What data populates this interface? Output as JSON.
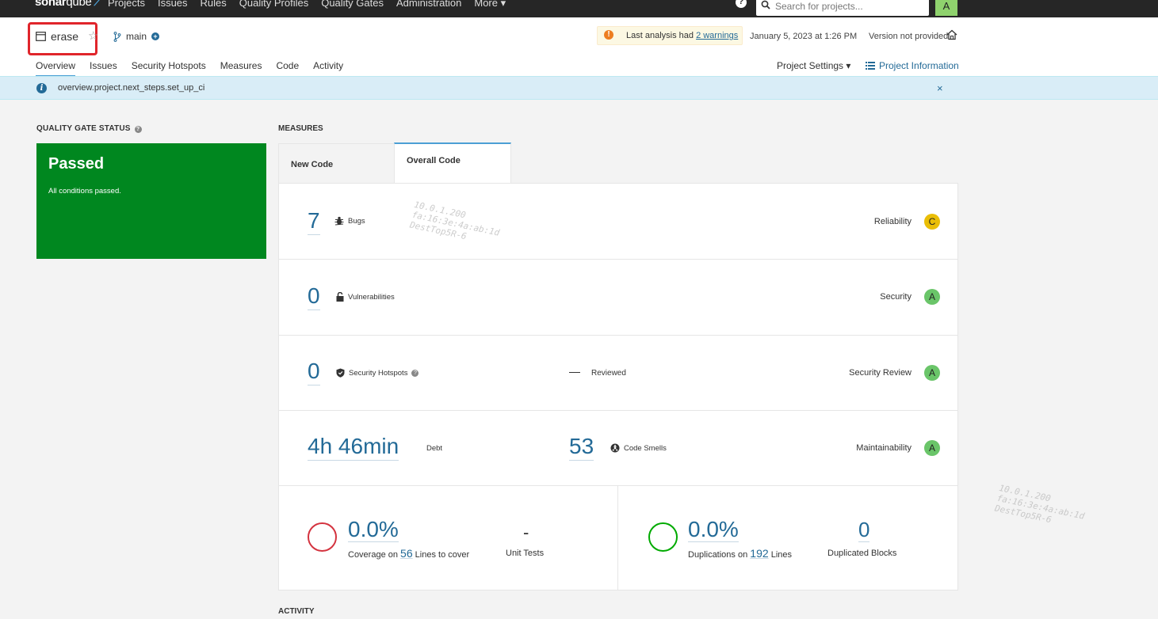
{
  "topnav": {
    "logo_bold": "sonar",
    "logo_light": "qube",
    "items": [
      "Projects",
      "Issues",
      "Rules",
      "Quality Profiles",
      "Quality Gates",
      "Administration",
      "More ▾"
    ],
    "search_placeholder": "Search for projects...",
    "avatar": "A"
  },
  "header": {
    "project_name": "erase",
    "branch": "main",
    "warning_prefix": "Last analysis had ",
    "warning_link": "2 warnings",
    "analysis_date": "January 5, 2023 at 1:26 PM",
    "version": "Version not provided",
    "tabs": [
      "Overview",
      "Issues",
      "Security Hotspots",
      "Measures",
      "Code",
      "Activity"
    ],
    "project_settings": "Project Settings ▾",
    "project_information": "Project Information"
  },
  "banner": {
    "text": "overview.project.next_steps.set_up_ci",
    "close": "×"
  },
  "quality_gate": {
    "title": "QUALITY GATE STATUS",
    "status": "Passed",
    "message": "All conditions passed."
  },
  "measures": {
    "title": "MEASURES",
    "tab_new": "New Code",
    "tab_overall": "Overall Code",
    "reliability": {
      "value": "7",
      "label": "Bugs",
      "name": "Reliability",
      "rating": "C"
    },
    "security": {
      "value": "0",
      "label": "Vulnerabilities",
      "name": "Security",
      "rating": "A"
    },
    "hotspots": {
      "value": "0",
      "label": "Security Hotspots",
      "reviewed": "Reviewed",
      "name": "Security Review",
      "rating": "A"
    },
    "maintainability": {
      "debt": "4h 46min",
      "debt_label": "Debt",
      "smells": "53",
      "smells_label": "Code Smells",
      "name": "Maintainability",
      "rating": "A"
    },
    "coverage": {
      "value": "0.0%",
      "prefix": "Coverage on ",
      "lines": "56",
      "suffix": " Lines to cover",
      "unit_tests_value": "-",
      "unit_tests_label": "Unit Tests"
    },
    "duplications": {
      "value": "0.0%",
      "prefix": "Duplications on ",
      "lines": "192",
      "suffix": " Lines",
      "blocks_value": "0",
      "blocks_label": "Duplicated Blocks"
    }
  },
  "activity_title": "ACTIVITY",
  "watermark": {
    "line1": "10.0.1.200",
    "line2": "fa:16:3e:4a:ab:1d",
    "line3": "DestTop5R-6"
  },
  "colors": {
    "topnav": "#262626",
    "passed": "#00871f",
    "link": "#236a97",
    "rating_c": "#eabe06",
    "rating_a": "#6ac569",
    "coverage_circle": "#d4333f",
    "duplication_circle": "#00aa00"
  }
}
